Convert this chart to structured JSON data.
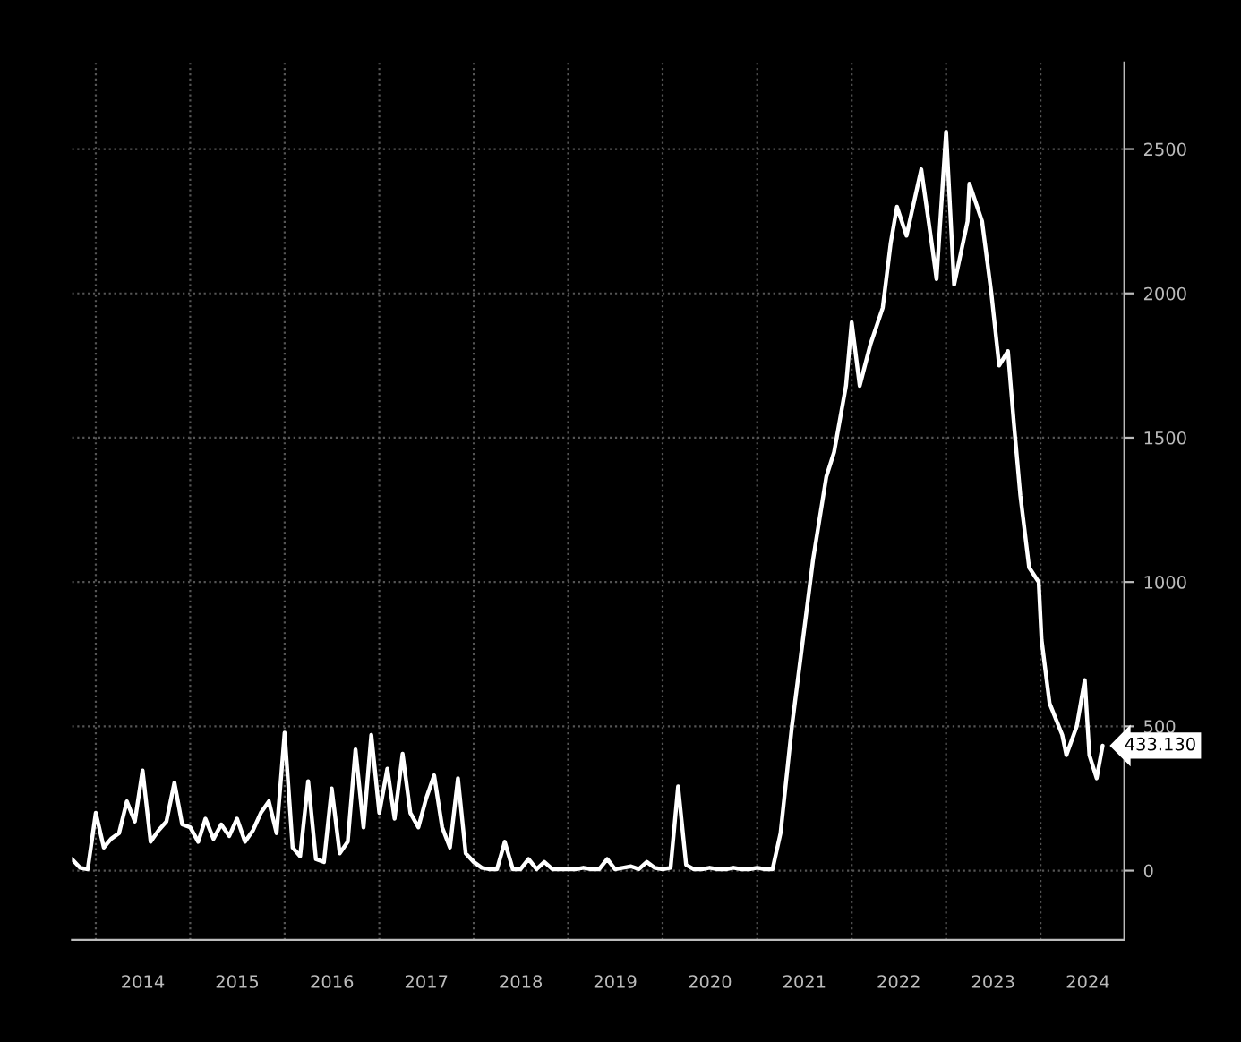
{
  "chart_data": {
    "type": "line",
    "x": [
      "2013-10-01",
      "2013-11-01",
      "2013-12-01",
      "2014-01-01",
      "2014-02-01",
      "2014-03-01",
      "2014-04-01",
      "2014-05-01",
      "2014-06-01",
      "2014-07-01",
      "2014-08-01",
      "2014-09-01",
      "2014-10-01",
      "2014-11-01",
      "2014-12-01",
      "2015-01-01",
      "2015-02-01",
      "2015-03-01",
      "2015-04-01",
      "2015-05-01",
      "2015-06-01",
      "2015-07-01",
      "2015-08-01",
      "2015-09-01",
      "2015-10-01",
      "2015-11-01",
      "2015-12-01",
      "2016-01-01",
      "2016-02-01",
      "2016-03-01",
      "2016-04-01",
      "2016-05-01",
      "2016-06-01",
      "2016-07-01",
      "2016-08-01",
      "2016-09-01",
      "2016-10-01",
      "2016-11-01",
      "2016-12-01",
      "2017-01-01",
      "2017-02-01",
      "2017-03-01",
      "2017-04-01",
      "2017-05-01",
      "2017-06-01",
      "2017-07-01",
      "2017-08-01",
      "2017-09-01",
      "2017-10-01",
      "2017-11-01",
      "2017-12-01",
      "2018-01-01",
      "2018-02-01",
      "2018-03-01",
      "2018-04-01",
      "2018-05-01",
      "2018-06-01",
      "2018-07-01",
      "2018-08-01",
      "2018-09-01",
      "2018-10-01",
      "2018-11-01",
      "2018-12-01",
      "2019-01-01",
      "2019-02-01",
      "2019-03-01",
      "2019-04-01",
      "2019-05-01",
      "2019-06-01",
      "2019-07-01",
      "2019-08-01",
      "2019-09-01",
      "2019-10-01",
      "2019-11-01",
      "2019-12-01",
      "2020-01-01",
      "2020-02-01",
      "2020-03-01",
      "2020-04-01",
      "2020-05-01",
      "2020-06-01",
      "2020-07-01",
      "2020-08-01",
      "2020-09-01",
      "2020-10-01",
      "2020-11-01",
      "2020-12-01",
      "2021-01-01",
      "2021-02-01",
      "2021-03-01",
      "2021-04-01",
      "2021-05-15",
      "2021-06-25",
      "2021-08-05",
      "2021-09-25",
      "2021-10-25",
      "2021-12-10",
      "2022-01-01",
      "2022-02-01",
      "2022-03-15",
      "2022-05-01",
      "2022-06-01",
      "2022-06-25",
      "2022-08-01",
      "2022-09-27",
      "2022-11-10",
      "2022-11-25",
      "2023-01-01",
      "2023-02-01",
      "2023-03-25",
      "2023-04-01",
      "2023-05-20",
      "2023-06-25",
      "2023-07-25",
      "2023-08-28",
      "2023-09-20",
      "2023-10-15",
      "2023-11-18",
      "2023-12-25",
      "2024-01-05",
      "2024-02-05",
      "2024-03-25",
      "2024-04-10",
      "2024-05-20",
      "2024-06-20",
      "2024-07-08",
      "2024-08-05",
      "2024-08-28"
    ],
    "values": [
      40,
      10,
      5,
      200,
      80,
      110,
      130,
      240,
      170,
      347,
      100,
      140,
      170,
      305,
      160,
      150,
      100,
      180,
      110,
      160,
      120,
      180,
      100,
      140,
      200,
      240,
      130,
      478,
      80,
      50,
      310,
      40,
      30,
      285,
      60,
      100,
      420,
      150,
      470,
      200,
      353,
      180,
      405,
      200,
      150,
      250,
      330,
      150,
      80,
      320,
      60,
      30,
      10,
      5,
      5,
      100,
      5,
      5,
      40,
      5,
      30,
      5,
      5,
      5,
      5,
      10,
      5,
      5,
      40,
      5,
      10,
      15,
      5,
      30,
      10,
      5,
      10,
      292,
      20,
      5,
      5,
      10,
      5,
      5,
      10,
      5,
      5,
      10,
      5,
      5,
      130,
      500,
      790,
      1080,
      1365,
      1450,
      1680,
      1900,
      1680,
      1825,
      1950,
      2175,
      2300,
      2200,
      2430,
      2150,
      2050,
      2560,
      2030,
      2250,
      2380,
      2250,
      2000,
      1750,
      1800,
      1550,
      1300,
      1050,
      1000,
      800,
      580,
      470,
      400,
      500,
      660,
      400,
      320,
      433.13
    ],
    "color": "#ffffff",
    "ylim": [
      -240,
      2800
    ],
    "yticks": [
      0,
      500,
      1000,
      1500,
      2000,
      2500
    ],
    "xlim": [
      "2013-10-01",
      "2024-11-20"
    ],
    "xticks": [
      {
        "value": "2014-01-01",
        "label": null
      },
      {
        "value": "2014-07-02",
        "label": "2014"
      },
      {
        "value": "2015-01-01",
        "label": null
      },
      {
        "value": "2015-07-02",
        "label": "2015"
      },
      {
        "value": "2016-01-01",
        "label": null
      },
      {
        "value": "2016-07-02",
        "label": "2016"
      },
      {
        "value": "2017-01-01",
        "label": null
      },
      {
        "value": "2017-07-02",
        "label": "2017"
      },
      {
        "value": "2018-01-01",
        "label": null
      },
      {
        "value": "2018-07-02",
        "label": "2018"
      },
      {
        "value": "2019-01-01",
        "label": null
      },
      {
        "value": "2019-07-02",
        "label": "2019"
      },
      {
        "value": "2020-01-01",
        "label": null
      },
      {
        "value": "2020-07-02",
        "label": "2020"
      },
      {
        "value": "2021-01-01",
        "label": null
      },
      {
        "value": "2021-07-02",
        "label": "2021"
      },
      {
        "value": "2022-01-01",
        "label": null
      },
      {
        "value": "2022-07-02",
        "label": "2022"
      },
      {
        "value": "2023-01-01",
        "label": null
      },
      {
        "value": "2023-07-02",
        "label": "2023"
      },
      {
        "value": "2024-01-01",
        "label": null
      },
      {
        "value": "2024-07-02",
        "label": "2024"
      }
    ],
    "annotations": [
      {
        "text": "433.130",
        "x": "2024-08-28",
        "y": 433.13
      }
    ],
    "grid": true,
    "marker": "none",
    "line_style": "solid"
  }
}
